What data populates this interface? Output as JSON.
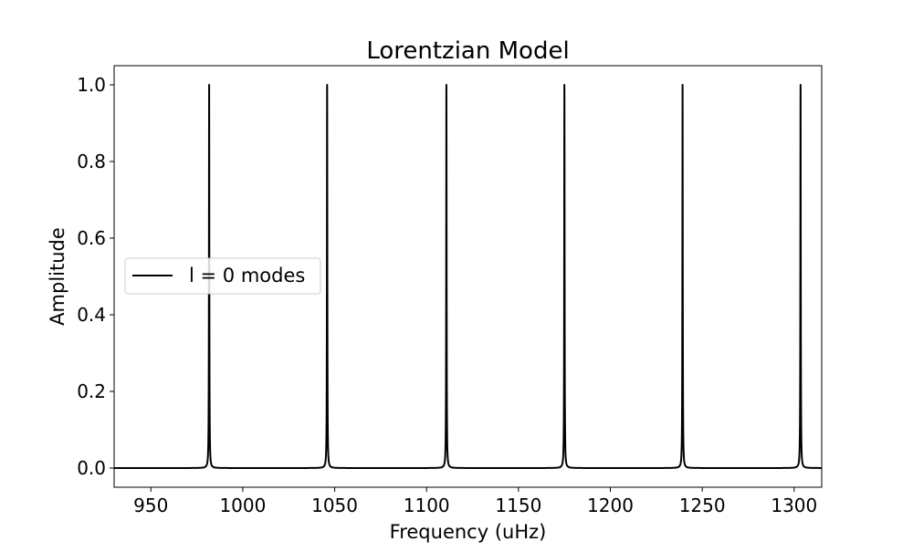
{
  "chart_data": {
    "type": "line",
    "title": "Lorentzian Model",
    "xlabel": "Frequency (uHz)",
    "ylabel": "Amplitude",
    "xlim": [
      930,
      1315
    ],
    "ylim": [
      -0.05,
      1.05
    ],
    "xticks": [
      950,
      1000,
      1050,
      1100,
      1150,
      1200,
      1250,
      1300
    ],
    "yticks": [
      0.0,
      0.2,
      0.4,
      0.6,
      0.8,
      1.0
    ],
    "xtick_labels": [
      "950",
      "1000",
      "1050",
      "1100",
      "1150",
      "1200",
      "1250",
      "1300"
    ],
    "ytick_labels": [
      "0.0",
      "0.2",
      "0.4",
      "0.6",
      "0.8",
      "1.0"
    ],
    "grid": false,
    "legend": {
      "location": "center-left",
      "entries": [
        "l = 0 modes"
      ]
    },
    "series": [
      {
        "name": "l = 0 modes",
        "color": "#000000",
        "model": "lorentzian",
        "peak_centers": [
          981.7,
          1045.9,
          1110.8,
          1175.0,
          1239.3,
          1303.5
        ],
        "peak_heights": [
          1.0,
          1.0,
          1.0,
          1.0,
          1.0,
          1.0
        ],
        "half_width": 0.12,
        "x_range": [
          930,
          1315
        ]
      }
    ]
  }
}
